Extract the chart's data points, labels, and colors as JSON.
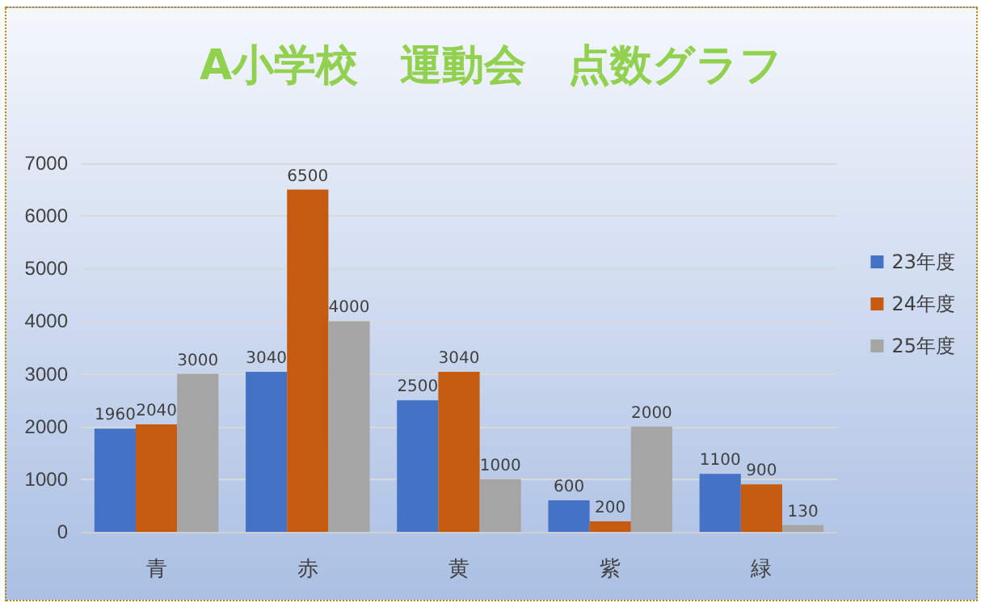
{
  "chart_data": {
    "type": "bar",
    "title": "A小学校　運動会　点数グラフ",
    "categories": [
      "青",
      "赤",
      "黄",
      "紫",
      "緑"
    ],
    "series": [
      {
        "name": "23年度",
        "color": "#4472c4",
        "values": [
          1960,
          3040,
          2500,
          600,
          1100
        ]
      },
      {
        "name": "24年度",
        "color": "#c55a11",
        "values": [
          2040,
          6500,
          3040,
          200,
          900
        ]
      },
      {
        "name": "25年度",
        "color": "#a5a5a5",
        "values": [
          3000,
          4000,
          1000,
          2000,
          130
        ]
      }
    ],
    "ylim": [
      0,
      7000
    ],
    "yticks": [
      0,
      1000,
      2000,
      3000,
      4000,
      5000,
      6000,
      7000
    ],
    "grid": "y",
    "legend": "right",
    "data_labels": true
  }
}
